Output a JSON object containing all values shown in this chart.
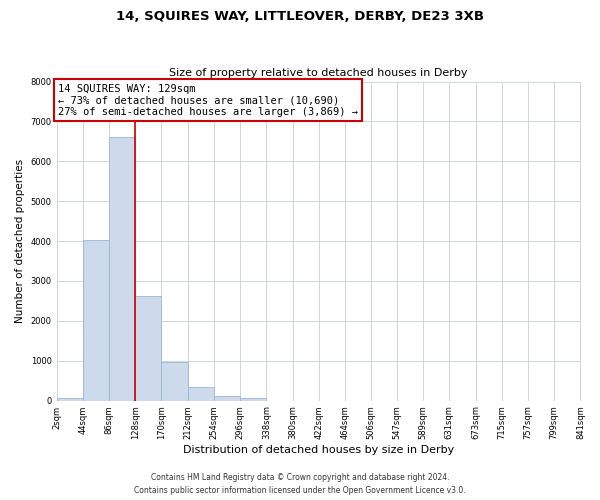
{
  "title": "14, SQUIRES WAY, LITTLEOVER, DERBY, DE23 3XB",
  "subtitle": "Size of property relative to detached houses in Derby",
  "xlabel": "Distribution of detached houses by size in Derby",
  "ylabel": "Number of detached properties",
  "bin_edges": [
    2,
    44,
    86,
    128,
    170,
    212,
    254,
    296,
    338,
    380,
    422,
    464,
    506,
    547,
    589,
    631,
    673,
    715,
    757,
    799,
    841
  ],
  "bin_labels": [
    "2sqm",
    "44sqm",
    "86sqm",
    "128sqm",
    "170sqm",
    "212sqm",
    "254sqm",
    "296sqm",
    "338sqm",
    "380sqm",
    "422sqm",
    "464sqm",
    "506sqm",
    "547sqm",
    "589sqm",
    "631sqm",
    "673sqm",
    "715sqm",
    "757sqm",
    "799sqm",
    "841sqm"
  ],
  "bar_heights": [
    60,
    4020,
    6600,
    2620,
    970,
    330,
    115,
    60,
    0,
    0,
    0,
    0,
    0,
    0,
    0,
    0,
    0,
    0,
    0,
    0
  ],
  "bar_color": "#ccdaeb",
  "bar_edgecolor": "#9ab5d0",
  "property_line_x": 128,
  "annotation_title": "14 SQUIRES WAY: 129sqm",
  "annotation_line1": "← 73% of detached houses are smaller (10,690)",
  "annotation_line2": "27% of semi-detached houses are larger (3,869) →",
  "annotation_box_color": "#ffffff",
  "annotation_box_edgecolor": "#cc0000",
  "ylim": [
    0,
    8000
  ],
  "yticks": [
    0,
    1000,
    2000,
    3000,
    4000,
    5000,
    6000,
    7000,
    8000
  ],
  "footer1": "Contains HM Land Registry data © Crown copyright and database right 2024.",
  "footer2": "Contains public sector information licensed under the Open Government Licence v3.0.",
  "background_color": "#ffffff",
  "grid_color": "#ccd5e0",
  "title_fontsize": 9.5,
  "subtitle_fontsize": 8,
  "xlabel_fontsize": 8,
  "ylabel_fontsize": 7.5,
  "tick_fontsize": 6,
  "annotation_fontsize": 7.5,
  "footer_fontsize": 5.5
}
